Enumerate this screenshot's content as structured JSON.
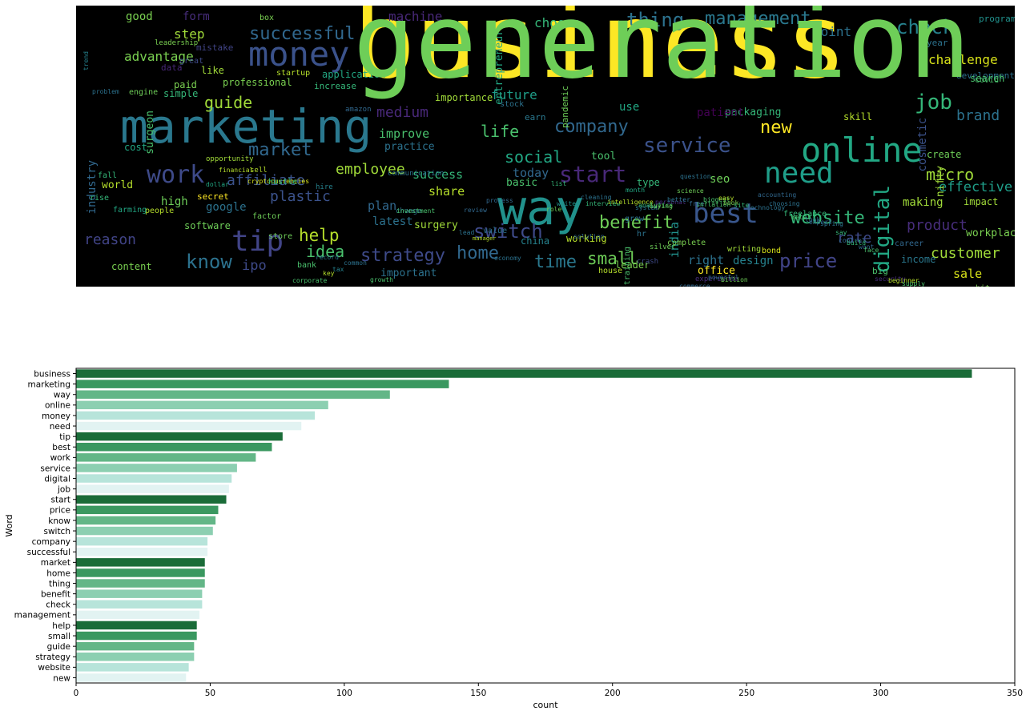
{
  "wordcloud": {
    "words": [
      {
        "t": "business",
        "c": "#fde725"
      },
      {
        "t": "marketing",
        "c": "#2a788e"
      },
      {
        "t": "way",
        "c": "#21918c"
      },
      {
        "t": "online",
        "c": "#22a884"
      },
      {
        "t": "money",
        "c": "#3b528b"
      },
      {
        "t": "need",
        "c": "#1f9e89"
      },
      {
        "t": "tip",
        "c": "#414487"
      },
      {
        "t": "best",
        "c": "#39568c"
      },
      {
        "t": "work",
        "c": "#3e4a89"
      },
      {
        "t": "service",
        "c": "#3b528b"
      },
      {
        "t": "digital",
        "c": "#22a884"
      },
      {
        "t": "job",
        "c": "#35b779"
      },
      {
        "t": "start",
        "c": "#482878"
      },
      {
        "t": "price",
        "c": "#414487"
      },
      {
        "t": "know",
        "c": "#2c728e"
      },
      {
        "t": "switch",
        "c": "#3e4a89"
      },
      {
        "t": "company",
        "c": "#31688e"
      },
      {
        "t": "successful",
        "c": "#31688e"
      },
      {
        "t": "market",
        "c": "#31688e"
      },
      {
        "t": "home",
        "c": "#31688e"
      },
      {
        "t": "thing",
        "c": "#2c728e"
      },
      {
        "t": "benefit",
        "c": "#6ece58"
      },
      {
        "t": "check",
        "c": "#26828e"
      },
      {
        "t": "management",
        "c": "#2a788e"
      },
      {
        "t": "help",
        "c": "#b5de2b"
      },
      {
        "t": "small",
        "c": "#6ece58"
      },
      {
        "t": "guide",
        "c": "#a0da39"
      },
      {
        "t": "strategy",
        "c": "#3e4a89"
      },
      {
        "t": "website",
        "c": "#35b779"
      },
      {
        "t": "new",
        "c": "#fde725"
      },
      {
        "t": "idea",
        "c": "#4ac16d"
      },
      {
        "t": "micro",
        "c": "#a0da39"
      },
      {
        "t": "effective",
        "c": "#1f9e89"
      },
      {
        "t": "medium",
        "c": "#482878"
      },
      {
        "t": "affiliate",
        "c": "#3b528b"
      },
      {
        "t": "plastic",
        "c": "#3b528b"
      },
      {
        "t": "time",
        "c": "#2a788e"
      },
      {
        "t": "customer",
        "c": "#a0da39"
      },
      {
        "t": "product",
        "c": "#472d7b"
      },
      {
        "t": "rate",
        "c": "#3e4a89"
      },
      {
        "t": "reason",
        "c": "#414487"
      },
      {
        "t": "life",
        "c": "#4ac16d"
      },
      {
        "t": "social",
        "c": "#22a884"
      },
      {
        "t": "employee",
        "c": "#a0da39"
      },
      {
        "t": "brand",
        "c": "#2c728e"
      },
      {
        "t": "advantage",
        "c": "#7ad151"
      },
      {
        "t": "step",
        "c": "#a0da39"
      },
      {
        "t": "form",
        "c": "#472d7b"
      },
      {
        "t": "good",
        "c": "#7ad151"
      },
      {
        "t": "machine",
        "c": "#482878"
      },
      {
        "t": "choose",
        "c": "#35b779"
      },
      {
        "t": "point",
        "c": "#2c728e"
      },
      {
        "t": "challenge",
        "c": "#d8e219"
      },
      {
        "t": "future",
        "c": "#1f9e89"
      },
      {
        "t": "entrepreneur",
        "c": "#22a884"
      },
      {
        "t": "industry",
        "c": "#31688e"
      },
      {
        "t": "surgeon",
        "c": "#4ac16d"
      },
      {
        "t": "improve",
        "c": "#4ac16d"
      },
      {
        "t": "practice",
        "c": "#2c728e"
      },
      {
        "t": "success",
        "c": "#35b779"
      },
      {
        "t": "share",
        "c": "#b5de2b"
      },
      {
        "t": "today",
        "c": "#31688e"
      },
      {
        "t": "plan",
        "c": "#31688e"
      },
      {
        "t": "latest",
        "c": "#2c728e"
      },
      {
        "t": "google",
        "c": "#2c728e"
      },
      {
        "t": "world",
        "c": "#b5de2b"
      },
      {
        "t": "high",
        "c": "#6ece58"
      },
      {
        "t": "software",
        "c": "#6ece58"
      },
      {
        "t": "content",
        "c": "#7ad151"
      },
      {
        "t": "ipo",
        "c": "#3e4a89"
      },
      {
        "t": "important",
        "c": "#2c728e"
      },
      {
        "t": "surgery",
        "c": "#a0da39"
      },
      {
        "t": "china",
        "c": "#26828e"
      },
      {
        "t": "working",
        "c": "#b5de2b"
      },
      {
        "t": "leader",
        "c": "#7ad151"
      },
      {
        "t": "right",
        "c": "#2c728e"
      },
      {
        "t": "design",
        "c": "#26828e"
      },
      {
        "t": "office",
        "c": "#fde725"
      },
      {
        "t": "sale",
        "c": "#d8e219"
      },
      {
        "t": "india",
        "c": "#21918c"
      },
      {
        "t": "seo",
        "c": "#6ece58"
      },
      {
        "t": "type",
        "c": "#35b779"
      },
      {
        "t": "tool",
        "c": "#4ac16d"
      },
      {
        "t": "packaging",
        "c": "#35b779"
      },
      {
        "t": "patient",
        "c": "#440154"
      },
      {
        "t": "use",
        "c": "#22a884"
      },
      {
        "t": "making",
        "c": "#a0da39"
      },
      {
        "t": "impact",
        "c": "#a0da39"
      },
      {
        "t": "workplace",
        "c": "#7ad151"
      },
      {
        "t": "create",
        "c": "#6ece58"
      },
      {
        "t": "nifty",
        "c": "#a0da39"
      },
      {
        "t": "cosmetic",
        "c": "#3b528b"
      },
      {
        "t": "skill",
        "c": "#b5de2b"
      },
      {
        "t": "like",
        "c": "#a0da39"
      },
      {
        "t": "paid",
        "c": "#7ad151"
      },
      {
        "t": "simple",
        "c": "#35b779"
      },
      {
        "t": "cost",
        "c": "#22a884"
      },
      {
        "t": "professional",
        "c": "#7ad151"
      },
      {
        "t": "increase",
        "c": "#35b779"
      },
      {
        "t": "application",
        "c": "#22a884"
      },
      {
        "t": "basic",
        "c": "#4ac16d"
      },
      {
        "t": "secret",
        "c": "#fde725"
      },
      {
        "t": "people",
        "c": "#b5de2b"
      },
      {
        "t": "program",
        "c": "#21918c"
      },
      {
        "t": "year",
        "c": "#2c728e"
      },
      {
        "t": "development",
        "c": "#2c728e"
      },
      {
        "t": "earn",
        "c": "#2a788e"
      },
      {
        "t": "stock",
        "c": "#2c728e"
      },
      {
        "t": "pandemic",
        "c": "#6ece58"
      },
      {
        "t": "training",
        "c": "#4ac16d"
      },
      {
        "t": "crash",
        "c": "#3e4a89"
      },
      {
        "t": "house",
        "c": "#b5de2b"
      },
      {
        "t": "hr",
        "c": "#2c728e"
      },
      {
        "t": "silver",
        "c": "#6ece58"
      },
      {
        "t": "complete",
        "c": "#7ad151"
      },
      {
        "t": "writing",
        "c": "#a0da39"
      },
      {
        "t": "bond",
        "c": "#d8e219"
      },
      {
        "t": "career",
        "c": "#31688e"
      },
      {
        "t": "income",
        "c": "#2a788e"
      },
      {
        "t": "big",
        "c": "#4ac16d"
      },
      {
        "t": "hit",
        "c": "#7ad151"
      },
      {
        "t": "search",
        "c": "#4ac16d"
      },
      {
        "t": "covid",
        "c": "#4ac16d"
      },
      {
        "t": "mistake",
        "c": "#414487"
      },
      {
        "t": "great",
        "c": "#3e4a89"
      },
      {
        "t": "trend",
        "c": "#26828e"
      },
      {
        "t": "box",
        "c": "#7ad151"
      },
      {
        "t": "startup",
        "c": "#b5de2b"
      },
      {
        "t": "data",
        "c": "#482878"
      },
      {
        "t": "leadership",
        "c": "#7ad151"
      },
      {
        "t": "engine",
        "c": "#6ece58"
      },
      {
        "t": "problem",
        "c": "#2c728e"
      },
      {
        "t": "fall",
        "c": "#35b779"
      },
      {
        "t": "rise",
        "c": "#35b779"
      },
      {
        "t": "farming",
        "c": "#22a884"
      },
      {
        "t": "store",
        "c": "#6ece58"
      },
      {
        "t": "bank",
        "c": "#4ac16d"
      },
      {
        "t": "record",
        "c": "#2c728e"
      },
      {
        "t": "key",
        "c": "#b5de2b"
      },
      {
        "t": "tax",
        "c": "#26828e"
      },
      {
        "t": "common",
        "c": "#2c728e"
      },
      {
        "t": "growth",
        "c": "#4ac16d"
      },
      {
        "t": "corporate",
        "c": "#4ac16d"
      },
      {
        "t": "opportunity",
        "c": "#a0da39"
      },
      {
        "t": "financial",
        "c": "#b5de2b"
      },
      {
        "t": "sell",
        "c": "#b5de2b"
      },
      {
        "t": "cryptocurrencies",
        "c": "#d8e219"
      },
      {
        "t": "hustle",
        "c": "#35b779"
      },
      {
        "t": "dollar",
        "c": "#22a884"
      },
      {
        "t": "factor",
        "c": "#6ece58"
      },
      {
        "t": "hire",
        "c": "#26828e"
      },
      {
        "t": "change",
        "c": "#2c728e"
      },
      {
        "t": "amazon",
        "c": "#31688e"
      },
      {
        "t": "communication",
        "c": "#2c728e"
      },
      {
        "t": "importance",
        "c": "#a0da39"
      },
      {
        "t": "investment",
        "c": "#4ac16d"
      },
      {
        "t": "lead",
        "c": "#2c728e"
      },
      {
        "t": "manager",
        "c": "#b5de2b"
      },
      {
        "t": "value",
        "c": "#2c728e"
      },
      {
        "t": "economy",
        "c": "#2c728e"
      },
      {
        "t": "process",
        "c": "#31688e"
      },
      {
        "t": "review",
        "c": "#31688e"
      },
      {
        "t": "role",
        "c": "#6ece58"
      },
      {
        "t": "list",
        "c": "#35b779"
      },
      {
        "t": "write",
        "c": "#21918c"
      },
      {
        "t": "solution",
        "c": "#31688e"
      },
      {
        "t": "cleaning",
        "c": "#2c728e"
      },
      {
        "t": "interview",
        "c": "#35b779"
      },
      {
        "t": "intelligence",
        "c": "#b5de2b"
      },
      {
        "t": "month",
        "c": "#22a884"
      },
      {
        "t": "grow",
        "c": "#2c728e"
      },
      {
        "t": "system",
        "c": "#2c728e"
      },
      {
        "t": "analytics",
        "c": "#35b779"
      },
      {
        "t": "buying",
        "c": "#6ece58"
      },
      {
        "t": "personal",
        "c": "#472d7b"
      },
      {
        "t": "better",
        "c": "#2c728e"
      },
      {
        "t": "science",
        "c": "#6ece58"
      },
      {
        "t": "question",
        "c": "#2c728e"
      },
      {
        "t": "free",
        "c": "#31688e"
      },
      {
        "t": "inflation",
        "c": "#4ac16d"
      },
      {
        "t": "biggest",
        "c": "#4ac16d"
      },
      {
        "t": "easy",
        "c": "#b5de2b"
      },
      {
        "t": "book",
        "c": "#7ad151"
      },
      {
        "t": "site",
        "c": "#35b779"
      },
      {
        "t": "technology",
        "c": "#2c728e"
      },
      {
        "t": "accounting",
        "c": "#31688e"
      },
      {
        "t": "choosing",
        "c": "#2c728e"
      },
      {
        "t": "freelance",
        "c": "#35b779"
      },
      {
        "t": "metal",
        "c": "#4ac16d"
      },
      {
        "t": "look",
        "c": "#2c728e"
      },
      {
        "t": "expert",
        "c": "#31688e"
      },
      {
        "t": "spring",
        "c": "#2c728e"
      },
      {
        "t": "say",
        "c": "#35b779"
      },
      {
        "t": "control",
        "c": "#31688e"
      },
      {
        "t": "build",
        "c": "#35b779"
      },
      {
        "t": "want",
        "c": "#31688e"
      },
      {
        "t": "face",
        "c": "#4ac16d"
      },
      {
        "t": "security",
        "c": "#472d7b"
      },
      {
        "t": "beginner",
        "c": "#b5de2b"
      },
      {
        "t": "supply",
        "c": "#4ac16d"
      },
      {
        "t": "commerce",
        "c": "#31688e"
      },
      {
        "t": "experience",
        "c": "#472d7b"
      },
      {
        "t": "powerful",
        "c": "#31688e"
      },
      {
        "t": "billion",
        "c": "#6ece58"
      },
      {
        "t": "generation",
        "c": "#6ece58"
      }
    ]
  },
  "chart_data": {
    "type": "bar",
    "orientation": "horizontal",
    "categories": [
      "business",
      "marketing",
      "way",
      "online",
      "money",
      "need",
      "tip",
      "best",
      "work",
      "service",
      "digital",
      "job",
      "start",
      "price",
      "know",
      "switch",
      "company",
      "successful",
      "market",
      "home",
      "thing",
      "benefit",
      "check",
      "management",
      "help",
      "small",
      "guide",
      "strategy",
      "website",
      "new"
    ],
    "values": [
      334,
      139,
      117,
      94,
      89,
      84,
      77,
      73,
      67,
      60,
      58,
      57,
      56,
      53,
      52,
      51,
      49,
      49,
      48,
      48,
      48,
      47,
      47,
      46,
      45,
      45,
      44,
      44,
      42,
      41
    ],
    "palette": [
      "#1a6c38",
      "#3a9860",
      "#63b687",
      "#8ccfb1",
      "#b7e4da",
      "#e2f3f2"
    ],
    "xlabel": "count",
    "ylabel": "Word",
    "xlim": [
      0,
      350
    ],
    "xticks": [
      0,
      50,
      100,
      150,
      200,
      250,
      300,
      350
    ],
    "grid": false
  }
}
